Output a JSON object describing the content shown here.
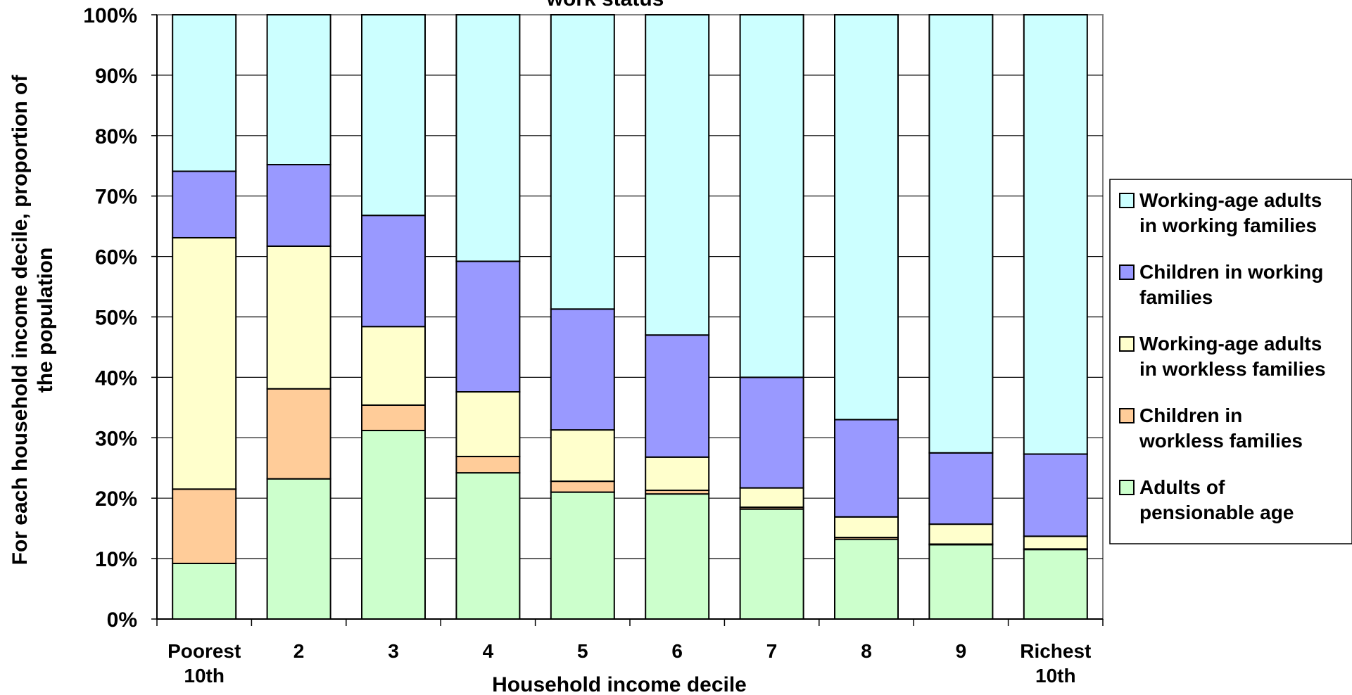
{
  "chart_data": {
    "type": "bar",
    "stacked": true,
    "title": "work status",
    "xlabel": "Household income decile",
    "ylabel": [
      "For each household income decile, proportion of",
      "the population"
    ],
    "ylim": [
      0,
      100
    ],
    "y_ticks": [
      "0%",
      "10%",
      "20%",
      "30%",
      "40%",
      "50%",
      "60%",
      "70%",
      "80%",
      "90%",
      "100%"
    ],
    "grid": true,
    "legend_position": "right",
    "categories": [
      [
        "Poorest",
        "10th"
      ],
      [
        "2"
      ],
      [
        "3"
      ],
      [
        "4"
      ],
      [
        "5"
      ],
      [
        "6"
      ],
      [
        "7"
      ],
      [
        "8"
      ],
      [
        "9"
      ],
      [
        "Richest",
        "10th"
      ]
    ],
    "series": [
      {
        "name": "Adults of pensionable age",
        "legend_lines": [
          "Adults of",
          "pensionable age"
        ],
        "color": "#ccffcc",
        "values": [
          9.2,
          23.2,
          31.2,
          24.2,
          21.0,
          20.7,
          18.2,
          13.2,
          12.3,
          11.5
        ]
      },
      {
        "name": "Children in workless families",
        "legend_lines": [
          "Children in",
          "workless families"
        ],
        "color": "#ffcc99",
        "values": [
          12.3,
          14.9,
          4.2,
          2.7,
          1.8,
          0.6,
          0.3,
          0.3,
          0.1,
          0.1
        ]
      },
      {
        "name": "Working-age adults in workless families",
        "legend_lines": [
          "Working-age adults",
          "in workless families"
        ],
        "color": "#ffffcc",
        "values": [
          41.6,
          23.6,
          13.0,
          10.7,
          8.5,
          5.5,
          3.2,
          3.4,
          3.3,
          2.1
        ]
      },
      {
        "name": "Children in working families",
        "legend_lines": [
          "Children in working",
          "families"
        ],
        "color": "#9999ff",
        "values": [
          11.0,
          13.5,
          18.4,
          21.6,
          20.0,
          20.2,
          18.3,
          16.1,
          11.8,
          13.6
        ]
      },
      {
        "name": "Working-age adults in working families",
        "legend_lines": [
          "Working-age adults",
          "in working families"
        ],
        "color": "#ccffff",
        "values": [
          25.9,
          24.8,
          33.2,
          40.8,
          48.7,
          53.0,
          60.0,
          67.0,
          72.5,
          72.7
        ]
      }
    ],
    "legend_order": [
      4,
      3,
      2,
      1,
      0
    ]
  }
}
